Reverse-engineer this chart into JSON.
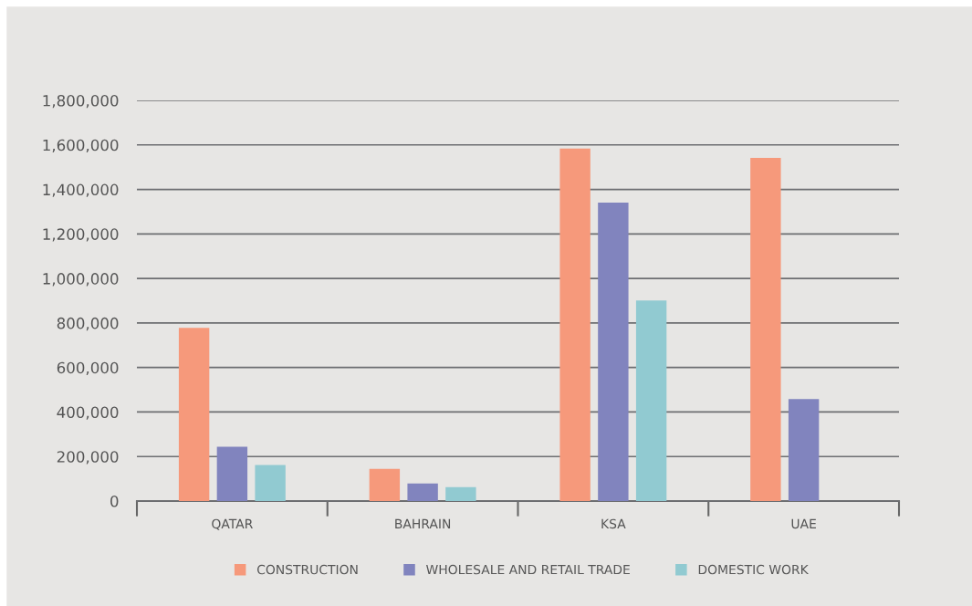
{
  "chart_data": {
    "type": "bar",
    "categories": [
      "QATAR",
      "BAHRAIN",
      "KSA",
      "UAE"
    ],
    "series": [
      {
        "name": "CONSTRUCTION",
        "color": "#f6997b",
        "values": [
          778000,
          145000,
          1584000,
          1542000
        ]
      },
      {
        "name": "WHOLESALE AND RETAIL TRADE",
        "color": "#8184be",
        "values": [
          244000,
          79000,
          1341000,
          458000
        ]
      },
      {
        "name": "DOMESTIC WORK",
        "color": "#91cad1",
        "values": [
          162000,
          63000,
          901000,
          null
        ]
      }
    ],
    "ylim": [
      0,
      1800000
    ],
    "yticks": [
      0,
      {
        "value": 200000,
        "label": "200,000"
      },
      {
        "value": 400000,
        "label": "400,000"
      },
      {
        "value": 600000,
        "label": "600,000"
      },
      {
        "value": 800000,
        "label": "800,000"
      },
      {
        "value": 1000000,
        "label": "1,000,000"
      },
      {
        "value": 1200000,
        "label": "1,200,000"
      },
      {
        "value": 1400000,
        "label": "1,400,000"
      },
      {
        "value": 1600000,
        "label": "1,600,000"
      },
      {
        "value": 1800000,
        "label": "1,800,000"
      }
    ],
    "grid": "y",
    "legend": "bottom",
    "marker": "square"
  }
}
